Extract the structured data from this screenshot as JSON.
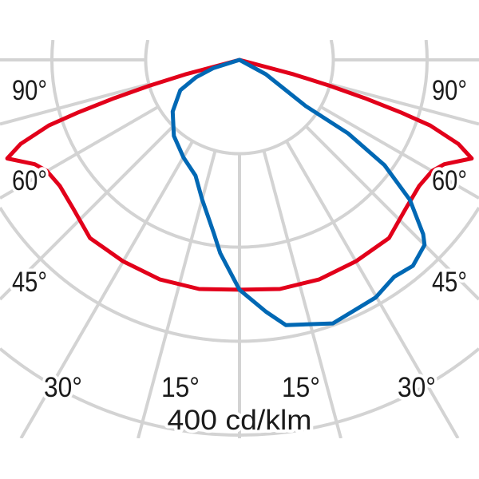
{
  "chart_data": {
    "type": "polar",
    "unit_label": "400 cd/klm",
    "radial_unit": "cd/klm",
    "radial_rings": [
      100,
      200,
      300,
      400
    ],
    "angle_step_deg": 15,
    "angle_labels": {
      "left": [
        "90°",
        "60°",
        "45°",
        "30°",
        "15°"
      ],
      "right": [
        "15°",
        "30°",
        "45°",
        "60°",
        "90°"
      ]
    },
    "grid": true,
    "colors": {
      "red": "#e2001a",
      "blue": "#0068b4",
      "grid": "#d3d3d3"
    },
    "series": [
      {
        "color": "#e2001a",
        "points": [
          [
            -76,
            0
          ],
          [
            -75,
            60
          ],
          [
            -74,
            100
          ],
          [
            -73,
            140
          ],
          [
            -72,
            180
          ],
          [
            -71,
            215
          ],
          [
            -69,
            250
          ],
          [
            -67,
            269
          ],
          [
            -63,
            245
          ],
          [
            -60,
            237
          ],
          [
            -55,
            234
          ],
          [
            -48,
            238
          ],
          [
            -40,
            248
          ],
          [
            -30,
            248
          ],
          [
            -20,
            249
          ],
          [
            -10,
            248
          ],
          [
            0,
            245
          ],
          [
            10,
            248
          ],
          [
            20,
            249
          ],
          [
            30,
            248
          ],
          [
            40,
            248
          ],
          [
            48,
            238
          ],
          [
            55,
            234
          ],
          [
            60,
            237
          ],
          [
            63,
            245
          ],
          [
            67,
            269
          ],
          [
            69,
            250
          ],
          [
            71,
            215
          ],
          [
            72,
            180
          ],
          [
            73,
            140
          ],
          [
            74,
            100
          ],
          [
            75,
            60
          ],
          [
            76,
            0
          ]
        ]
      },
      {
        "color": "#0068b4",
        "points": [
          [
            0,
            0
          ],
          [
            -72.6,
            29
          ],
          [
            -68.2,
            50
          ],
          [
            -62.8,
            71
          ],
          [
            -52.3,
            90
          ],
          [
            -40.8,
            107
          ],
          [
            -29.8,
            120
          ],
          [
            -20.8,
            132
          ],
          [
            -15,
            154
          ],
          [
            -8.4,
            187
          ],
          [
            -5.7,
            207
          ],
          [
            0,
            245
          ],
          [
            6,
            270
          ],
          [
            9.9,
            287
          ],
          [
            19.5,
            298
          ],
          [
            29.8,
            292
          ],
          [
            35.5,
            284
          ],
          [
            40.1,
            287
          ],
          [
            45,
            279
          ],
          [
            46.5,
            270
          ],
          [
            50.6,
            235
          ],
          [
            54,
            191
          ],
          [
            55.9,
            140
          ],
          [
            55.1,
            86
          ],
          [
            61.4,
            32
          ],
          [
            0,
            0
          ]
        ]
      }
    ]
  }
}
